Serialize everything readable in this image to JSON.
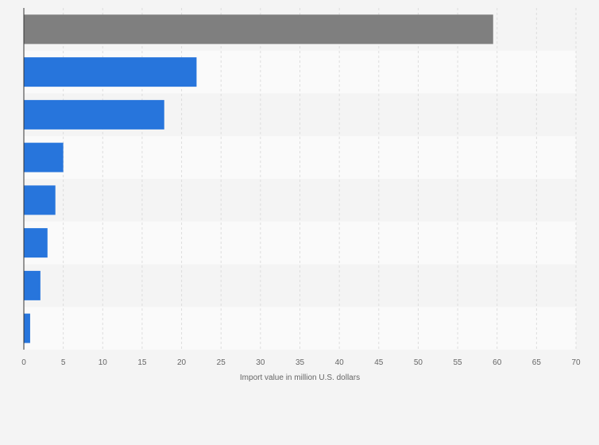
{
  "chart_data": {
    "type": "bar",
    "orientation": "horizontal",
    "categories": [
      "",
      "",
      "",
      "",
      "",
      "",
      "",
      ""
    ],
    "values": [
      59.5,
      21.9,
      17.8,
      5.0,
      4.0,
      3.0,
      2.1,
      0.8
    ],
    "highlight_index": 0,
    "xlabel": "Import value in million U.S. dollars",
    "ylabel": "",
    "xlim": [
      0,
      70
    ],
    "x_ticks": [
      0,
      5,
      10,
      15,
      20,
      25,
      30,
      35,
      40,
      45,
      50,
      55,
      60,
      65,
      70
    ],
    "x_tick_labels": [
      "0",
      "5",
      "10",
      "15",
      "20",
      "25",
      "30",
      "35",
      "40",
      "45",
      "50",
      "55",
      "60",
      "65",
      "70"
    ],
    "grid": true,
    "legend": "none",
    "colors": {
      "bar": "#2775dc",
      "highlight": "#7f7f7f",
      "band_even": "#f4f4f4",
      "band_odd": "#fafafa",
      "grid": "#dddddd",
      "axis": "#333333",
      "text": "#666666"
    }
  }
}
